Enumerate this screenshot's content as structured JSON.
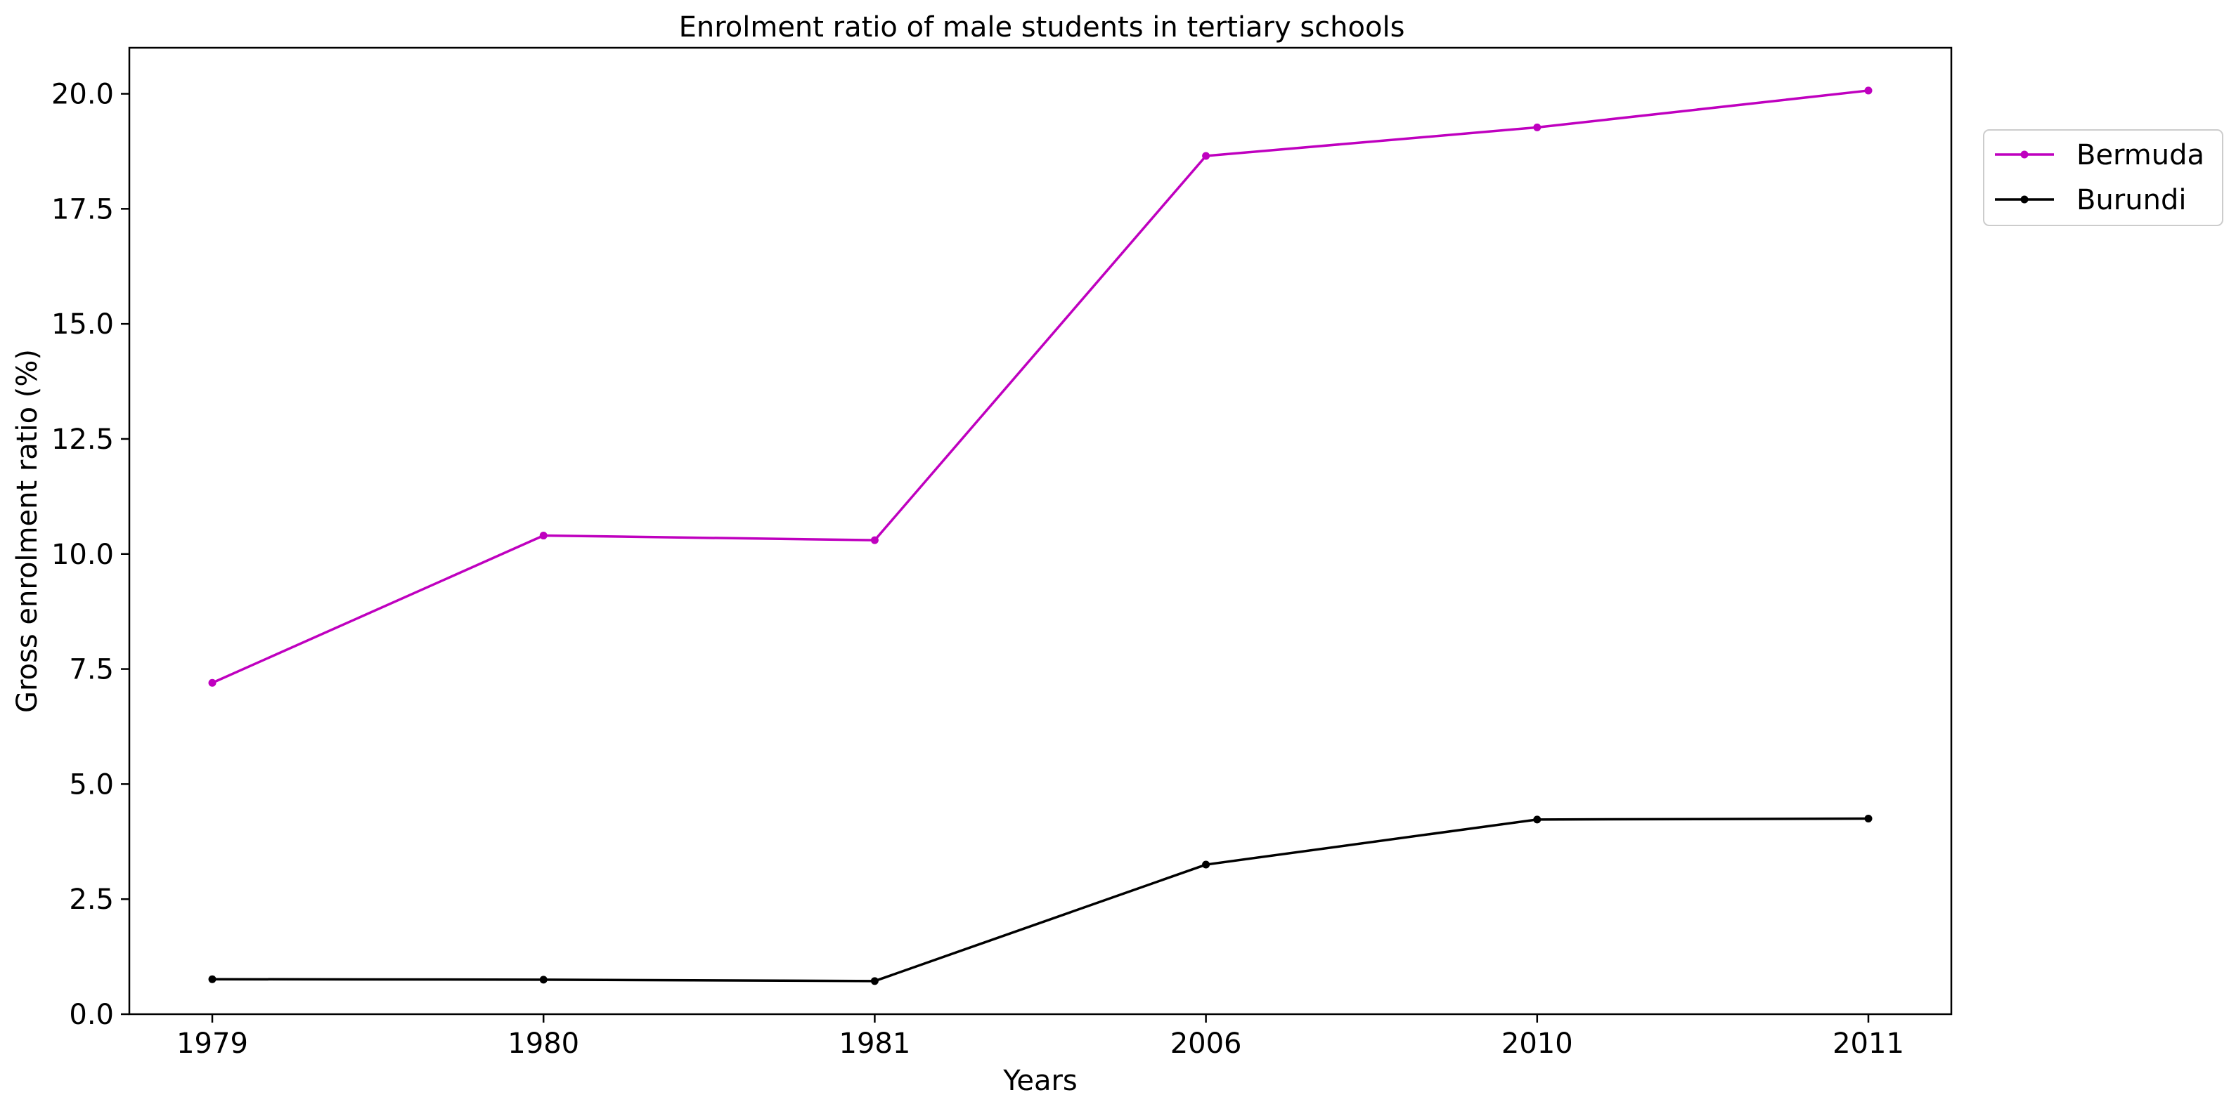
{
  "chart_data": {
    "type": "line",
    "title": "Enrolment ratio of male students in tertiary schools",
    "xlabel": "Years",
    "ylabel": "Gross enrolment ratio (%)",
    "categories": [
      "1979",
      "1980",
      "1981",
      "2006",
      "2010",
      "2011"
    ],
    "ylim": [
      0,
      21
    ],
    "yticks": [
      "0.0",
      "2.5",
      "5.0",
      "7.5",
      "10.0",
      "12.5",
      "15.0",
      "17.5",
      "20.0"
    ],
    "grid": false,
    "legend_position": "upper-right-outside",
    "series": [
      {
        "name": "Bermuda",
        "color": "#bf00bf",
        "values": [
          7.2,
          10.4,
          10.3,
          18.65,
          19.27,
          20.07
        ]
      },
      {
        "name": "Burundi",
        "color": "#000000",
        "values": [
          0.76,
          0.75,
          0.72,
          3.25,
          4.23,
          4.25
        ]
      }
    ]
  }
}
